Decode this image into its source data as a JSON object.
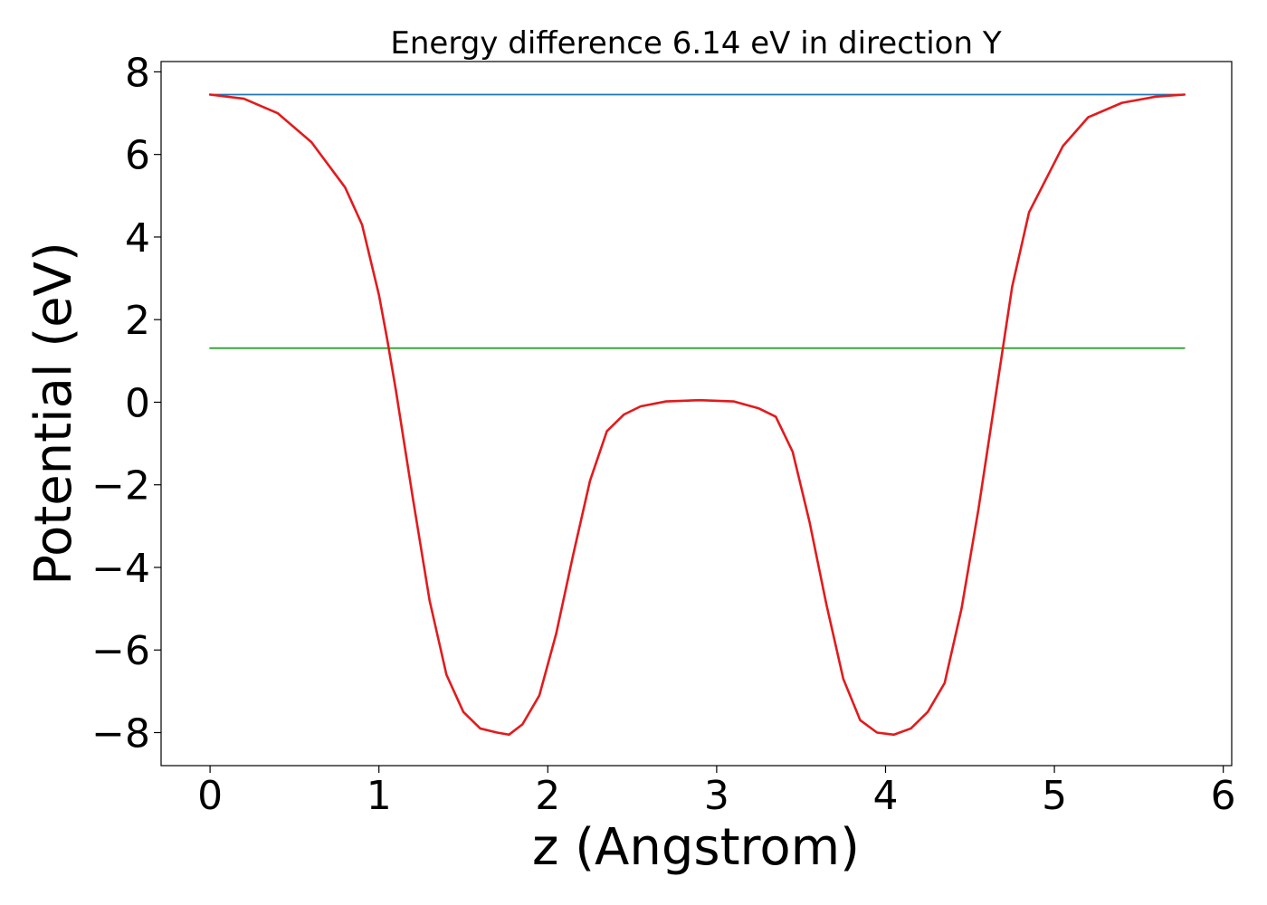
{
  "chart_data": {
    "type": "line",
    "title": "Energy difference 6.14 eV in direction Y",
    "xlabel": "z (Angstrom)",
    "ylabel": "Potential (eV)",
    "xlim": [
      -0.29,
      6.05
    ],
    "ylim": [
      -8.8,
      8.25
    ],
    "xticks": [
      0,
      1,
      2,
      3,
      4,
      5,
      6
    ],
    "xtick_labels": [
      "0",
      "1",
      "2",
      "3",
      "4",
      "5",
      "6"
    ],
    "yticks": [
      -8,
      -6,
      -4,
      -2,
      0,
      2,
      4,
      6,
      8
    ],
    "ytick_labels": [
      "−8",
      "−6",
      "−4",
      "−2",
      "0",
      "2",
      "4",
      "6",
      "8"
    ],
    "grid": false,
    "legend": "none",
    "series": [
      {
        "color": "#1f77b4",
        "x": [
          0,
          5.77
        ],
        "y": [
          7.45,
          7.45
        ]
      },
      {
        "color": "#2ca02c",
        "x": [
          0,
          5.77
        ],
        "y": [
          1.31,
          1.31
        ]
      },
      {
        "color": "#e31a1c",
        "x": [
          0,
          0.2,
          0.4,
          0.6,
          0.8,
          0.9,
          1.0,
          1.05,
          1.1,
          1.2,
          1.3,
          1.4,
          1.5,
          1.6,
          1.7,
          1.77,
          1.85,
          1.95,
          2.05,
          2.15,
          2.25,
          2.35,
          2.45,
          2.55,
          2.7,
          2.9,
          3.1,
          3.25,
          3.35,
          3.45,
          3.55,
          3.65,
          3.75,
          3.85,
          3.95,
          4.05,
          4.15,
          4.25,
          4.35,
          4.45,
          4.55,
          4.65,
          4.75,
          4.85,
          4.95,
          5.05,
          5.2,
          5.4,
          5.6,
          5.77
        ],
        "y": [
          7.45,
          7.35,
          7.0,
          6.3,
          5.2,
          4.3,
          2.6,
          1.5,
          0.3,
          -2.3,
          -4.8,
          -6.6,
          -7.5,
          -7.9,
          -8.0,
          -8.05,
          -7.8,
          -7.1,
          -5.6,
          -3.7,
          -1.9,
          -0.7,
          -0.3,
          -0.1,
          0.02,
          0.05,
          0.02,
          -0.15,
          -0.35,
          -1.2,
          -2.9,
          -4.9,
          -6.7,
          -7.7,
          -8.0,
          -8.05,
          -7.9,
          -7.5,
          -6.8,
          -5.0,
          -2.6,
          0.1,
          2.8,
          4.6,
          5.4,
          6.2,
          6.9,
          7.25,
          7.4,
          7.45
        ]
      }
    ]
  }
}
